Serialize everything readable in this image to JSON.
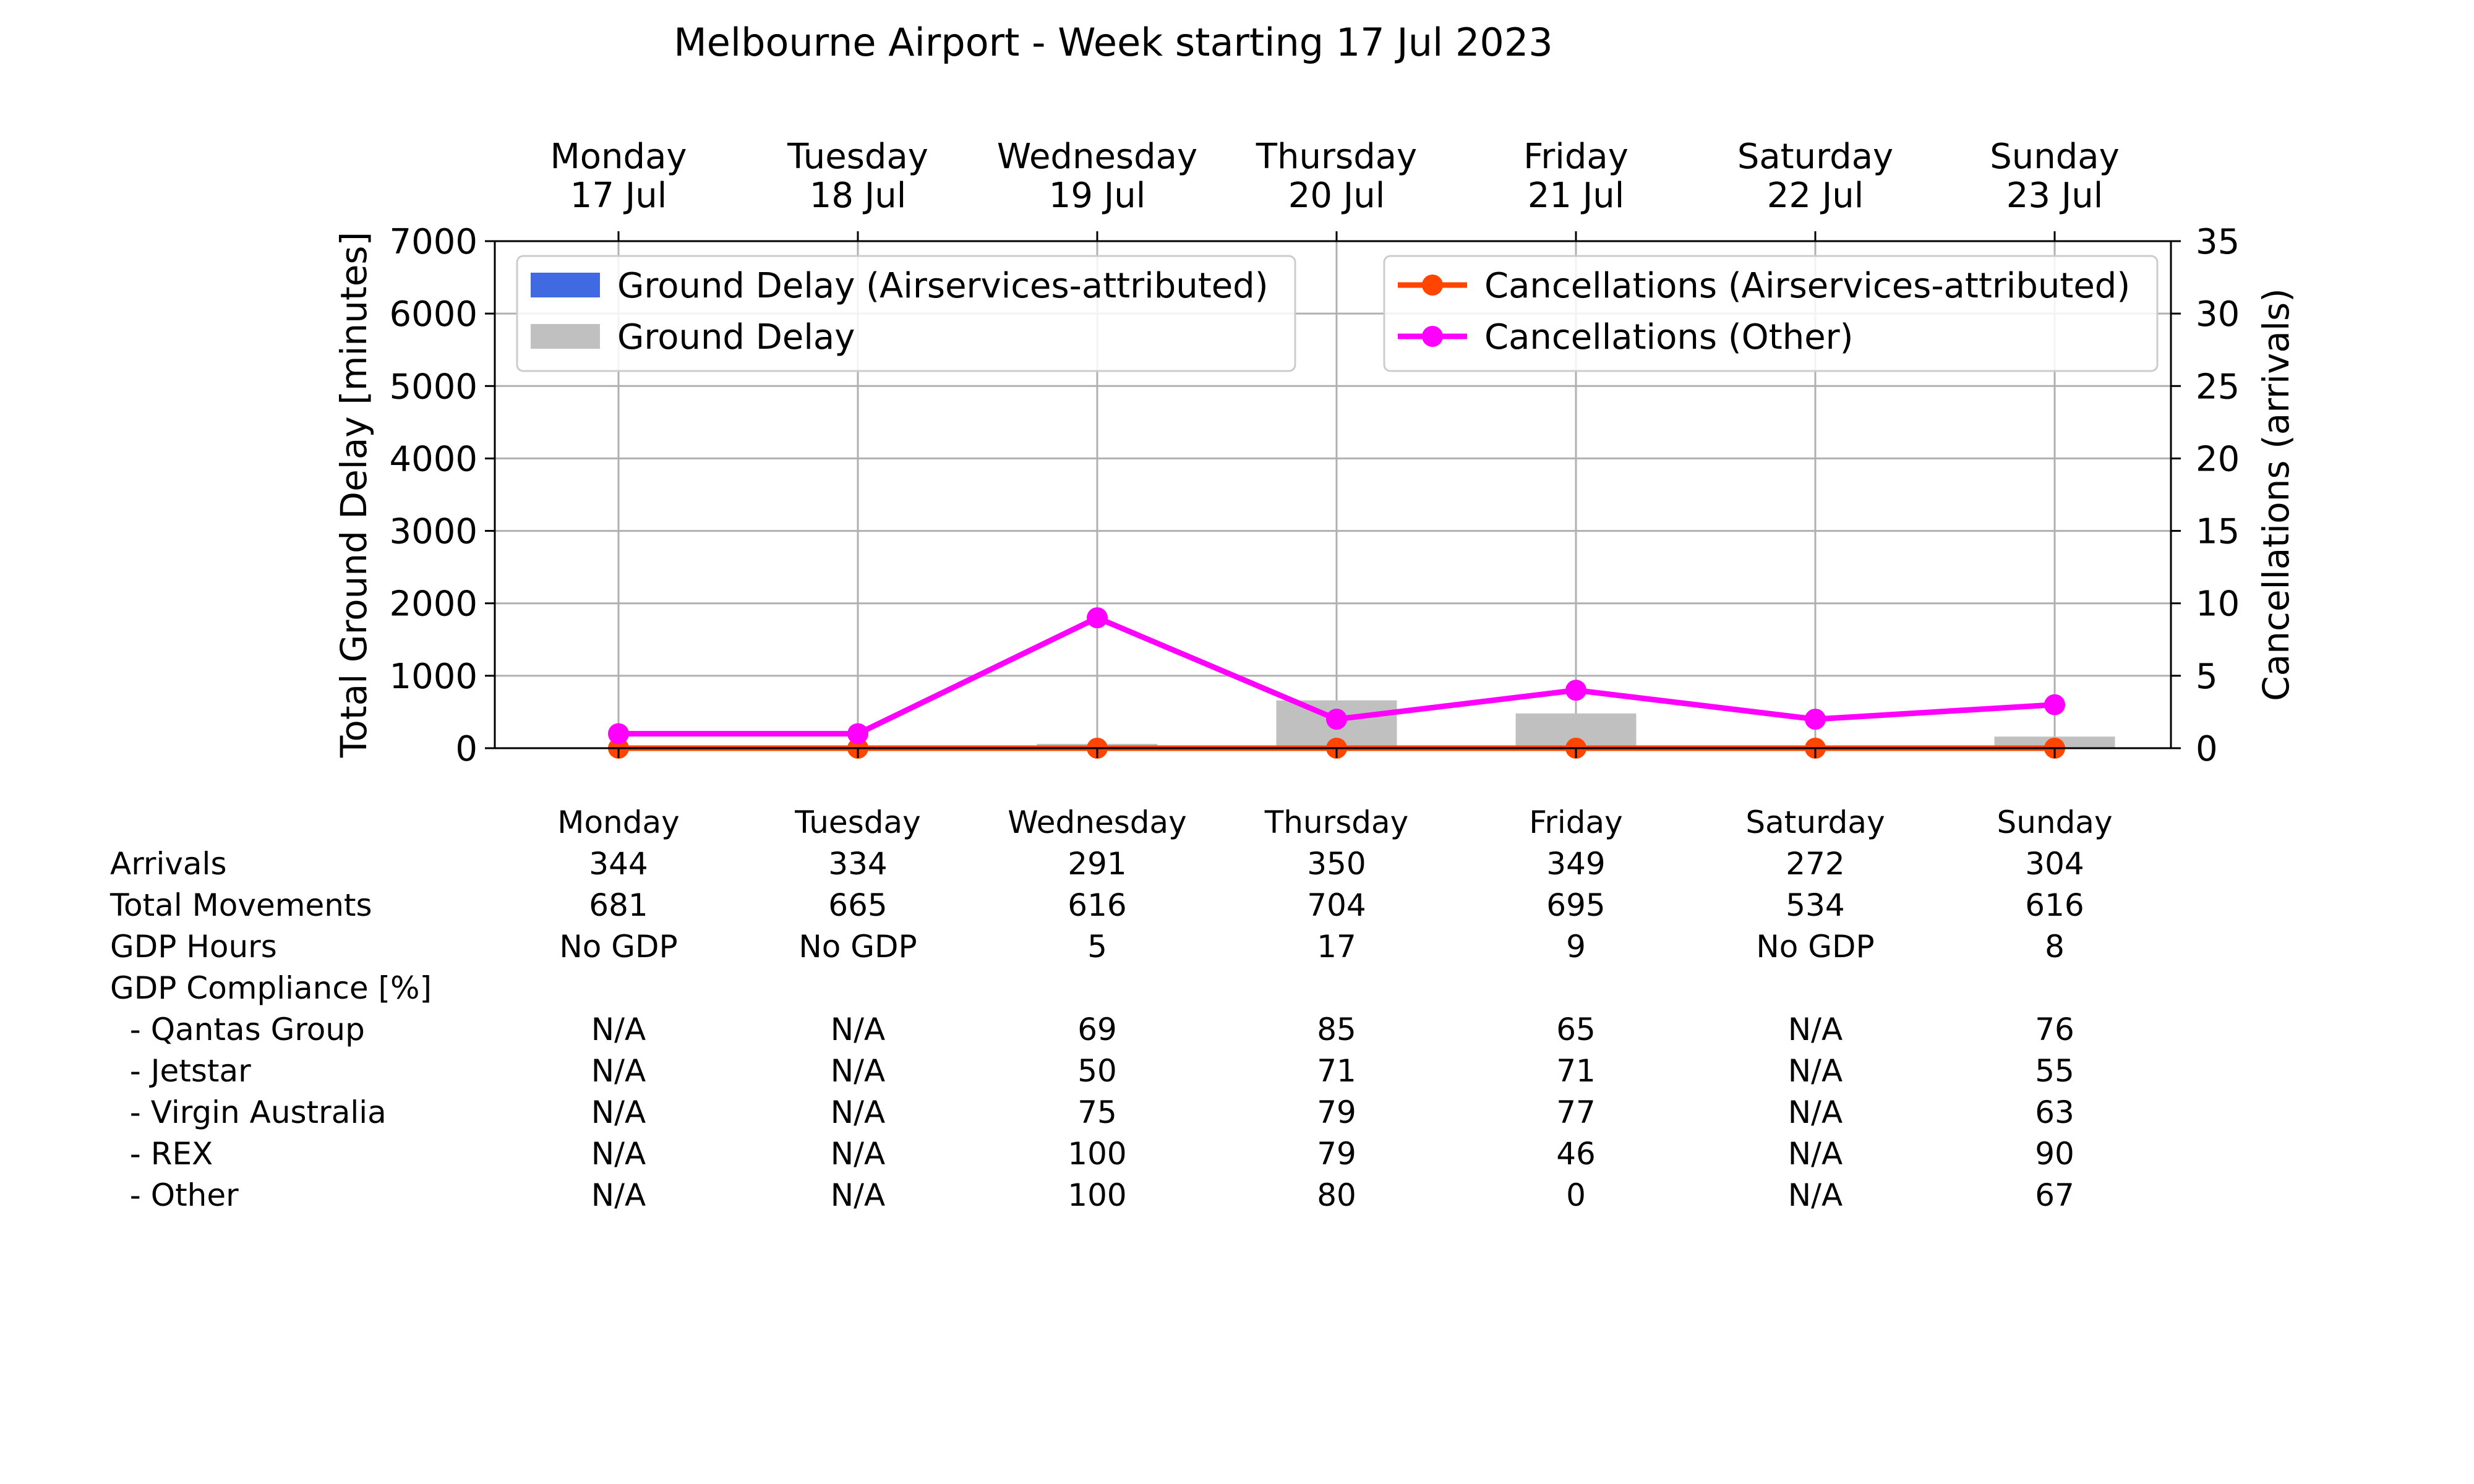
{
  "chart_data": {
    "type": "bar",
    "title": "Melbourne Airport - Week starting 17 Jul 2023",
    "categories": [
      "Monday\n17 Jul",
      "Tuesday\n18 Jul",
      "Wednesday\n19 Jul",
      "Thursday\n20 Jul",
      "Friday\n21 Jul",
      "Saturday\n22 Jul",
      "Sunday\n23 Jul"
    ],
    "ylabel": "Total Ground Delay [minutes]",
    "ylim": [
      0,
      7000
    ],
    "yticks": [
      "0",
      "1000",
      "2000",
      "3000",
      "4000",
      "5000",
      "6000",
      "7000"
    ],
    "y2label": "Cancellations (arrivals)",
    "y2lim": [
      0,
      35
    ],
    "y2ticks": [
      "0",
      "5",
      "10",
      "15",
      "20",
      "25",
      "30",
      "35"
    ],
    "grid": true,
    "series": [
      {
        "name": "Ground Delay (Airservices-attributed)",
        "type": "bar",
        "axis": "left",
        "color": "#4169e1",
        "values": [
          0,
          0,
          0,
          0,
          0,
          0,
          0
        ]
      },
      {
        "name": "Ground Delay",
        "type": "bar",
        "axis": "left",
        "color": "#c0c0c0",
        "values": [
          0,
          0,
          60,
          660,
          480,
          0,
          160
        ]
      },
      {
        "name": "Cancellations (Airservices-attributed)",
        "type": "line",
        "axis": "right",
        "color": "#ff4500",
        "values": [
          0,
          0,
          0,
          0,
          0,
          0,
          0
        ]
      },
      {
        "name": "Cancellations (Other)",
        "type": "line",
        "axis": "right",
        "color": "#ff00ff",
        "values": [
          1,
          1,
          9,
          2,
          4,
          2,
          3
        ]
      }
    ],
    "legend_left": "upper-left",
    "legend_right": "upper-right"
  },
  "table": {
    "headers": [
      "Monday",
      "Tuesday",
      "Wednesday",
      "Thursday",
      "Friday",
      "Saturday",
      "Sunday"
    ],
    "rows": [
      {
        "label": "Arrivals",
        "values": [
          "344",
          "334",
          "291",
          "350",
          "349",
          "272",
          "304"
        ]
      },
      {
        "label": "Total Movements",
        "values": [
          "681",
          "665",
          "616",
          "704",
          "695",
          "534",
          "616"
        ]
      },
      {
        "label": "GDP Hours",
        "values": [
          "No GDP",
          "No GDP",
          "5",
          "17",
          "9",
          "No GDP",
          "8"
        ]
      },
      {
        "label": "GDP Compliance [%]",
        "values": [
          "",
          "",
          "",
          "",
          "",
          "",
          ""
        ]
      },
      {
        "label": "  - Qantas Group",
        "values": [
          "N/A",
          "N/A",
          "69",
          "85",
          "65",
          "N/A",
          "76"
        ]
      },
      {
        "label": "  - Jetstar",
        "values": [
          "N/A",
          "N/A",
          "50",
          "71",
          "71",
          "N/A",
          "55"
        ]
      },
      {
        "label": "  - Virgin Australia",
        "values": [
          "N/A",
          "N/A",
          "75",
          "79",
          "77",
          "N/A",
          "63"
        ]
      },
      {
        "label": "  - REX",
        "values": [
          "N/A",
          "N/A",
          "100",
          "79",
          "46",
          "N/A",
          "90"
        ]
      },
      {
        "label": "  - Other",
        "values": [
          "N/A",
          "N/A",
          "100",
          "80",
          "0",
          "N/A",
          "67"
        ]
      }
    ]
  }
}
